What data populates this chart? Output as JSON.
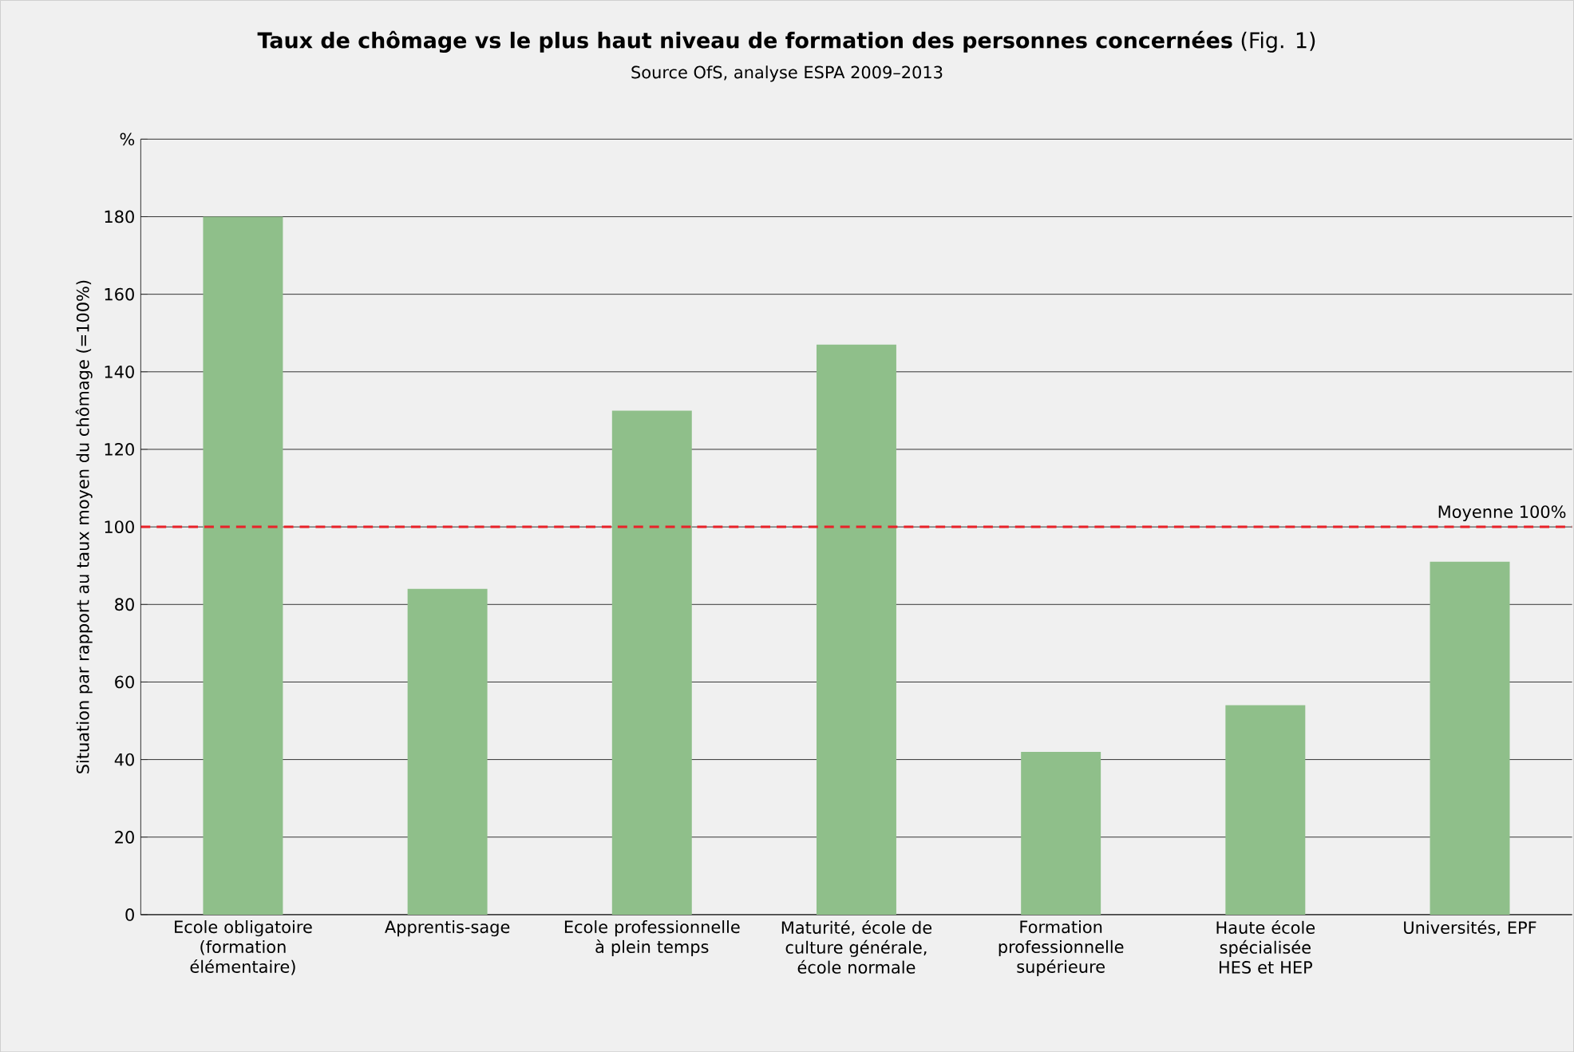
{
  "chart_data": {
    "type": "bar",
    "title": "**Taux de chômage vs le plus haut niveau de formation des personnes concernées** (Fig. 1)",
    "subtitle": "Source OfS, analyse ESPA 2009–2013",
    "ylabel": "Situation par rapport au taux moyen du chômage (=100%)",
    "categories": [
      "Ecole obligatoire (formation élémentaire)",
      "Apprentis-sage",
      "Ecole professionnelle à plein temps",
      "Maturité, école de culture générale, école normale",
      "Formation professionnelle supérieure",
      "Haute école spécialisée HES et HEP",
      "Universités, EPF"
    ],
    "values": [
      180,
      84,
      130,
      147,
      42,
      54,
      91
    ],
    "color": "#8fbf8a",
    "ylim": [
      0,
      200
    ],
    "yticks": [
      0,
      20,
      40,
      60,
      80,
      100,
      120,
      140,
      160,
      180,
      {
        "value": 200,
        "label": "%"
      }
    ],
    "grid": "y",
    "ref_lines": [
      {
        "axis": "y",
        "value": 100,
        "label": "Moyenne 100%",
        "color": "#e8232a",
        "line_style": "dashed"
      }
    ]
  }
}
